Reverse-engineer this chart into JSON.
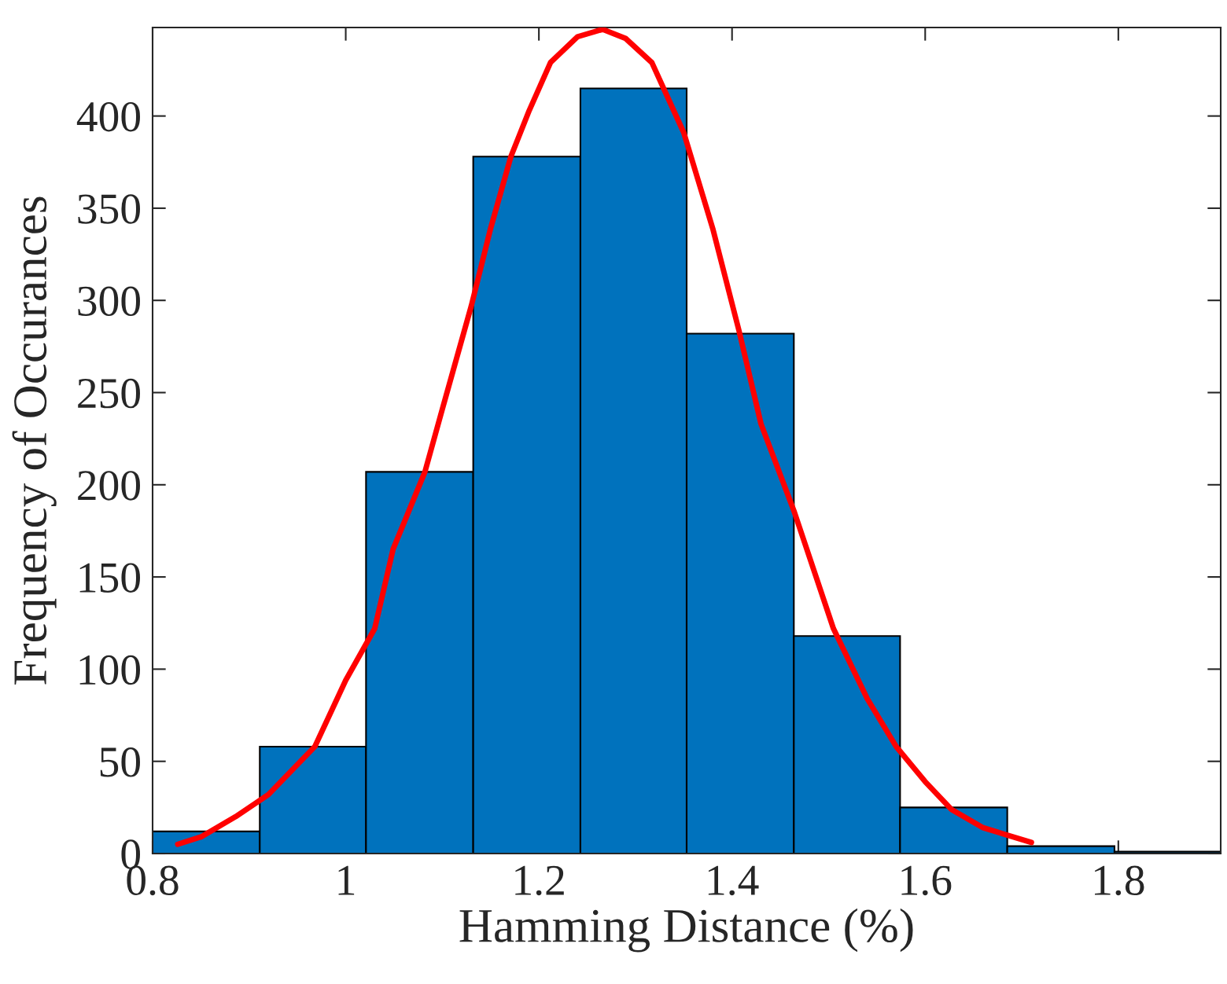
{
  "chart_data": {
    "type": "histogram",
    "xlabel": "Hamming Distance (%)",
    "ylabel": "Frequency of Occurances",
    "bins": [
      0.8,
      0.911,
      1.021,
      1.132,
      1.243,
      1.353,
      1.464,
      1.574,
      1.685,
      1.796,
      1.906
    ],
    "series": [
      {
        "color": "#0072bd",
        "values": [
          12,
          58,
          207,
          378,
          415,
          282,
          118,
          25,
          4,
          1
        ]
      },
      {
        "type": "line",
        "color": "#ff0000",
        "x": [
          0.826,
          0.85,
          0.886,
          0.92,
          0.968,
          1.0,
          1.03,
          1.049,
          1.082,
          1.1,
          1.13,
          1.15,
          1.171,
          1.19,
          1.212,
          1.24,
          1.266,
          1.29,
          1.317,
          1.35,
          1.38,
          1.407,
          1.43,
          1.464,
          1.505,
          1.54,
          1.57,
          1.6,
          1.627,
          1.66,
          1.71
        ],
        "values": [
          5,
          9,
          20,
          32,
          58,
          94,
          122,
          165,
          207,
          241,
          297,
          339,
          378,
          403,
          429,
          443,
          447,
          442,
          429,
          391,
          339,
          284,
          233,
          186,
          122,
          84,
          58,
          39,
          24,
          14,
          6
        ]
      }
    ],
    "xlim": [
      0.8,
      1.906
    ],
    "ylim": [
      0,
      448
    ],
    "xticks": [
      {
        "value": 0.8,
        "label": "0.8"
      },
      1,
      1.2,
      1.4,
      1.6,
      1.8
    ],
    "yticks": [
      0,
      50,
      100,
      150,
      200,
      250,
      300,
      350,
      400
    ],
    "grid": false,
    "legend": false
  }
}
